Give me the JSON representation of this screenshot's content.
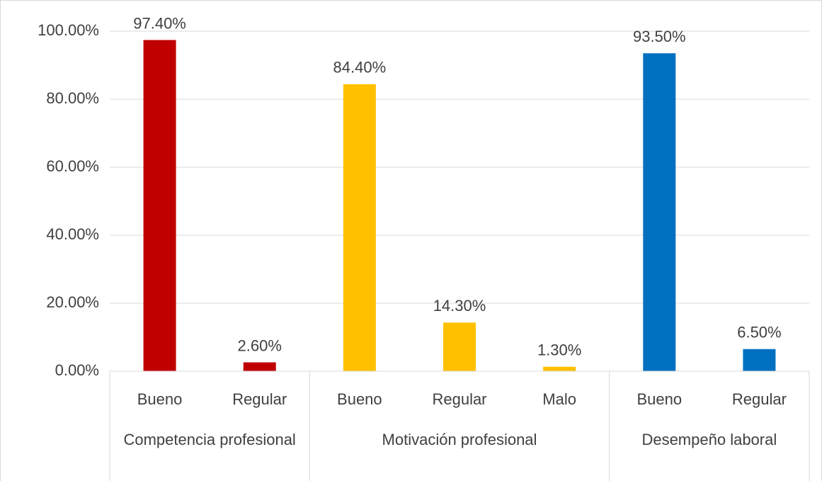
{
  "chart_data": {
    "type": "bar",
    "ylim": [
      0,
      100
    ],
    "yticks": [
      {
        "value": 0,
        "label": "0.00%"
      },
      {
        "value": 20,
        "label": "20.00%"
      },
      {
        "value": 40,
        "label": "40.00%"
      },
      {
        "value": 60,
        "label": "60.00%"
      },
      {
        "value": 80,
        "label": "80.00%"
      },
      {
        "value": 100,
        "label": "100.00%"
      }
    ],
    "grid": true,
    "groups": [
      {
        "name": "Competencia profesional",
        "color": "#c00000",
        "categories": [
          "Bueno",
          "Regular"
        ],
        "values": [
          97.4,
          2.6
        ],
        "value_labels": [
          "97.40%",
          "2.60%"
        ]
      },
      {
        "name": "Motivación profesional",
        "color": "#ffc000",
        "categories": [
          "Bueno",
          "Regular",
          "Malo"
        ],
        "values": [
          84.4,
          14.3,
          1.3
        ],
        "value_labels": [
          "84.40%",
          "14.30%",
          "1.30%"
        ]
      },
      {
        "name": "Desempeño laboral",
        "color": "#0070c0",
        "categories": [
          "Bueno",
          "Regular"
        ],
        "values": [
          93.5,
          6.5
        ],
        "value_labels": [
          "93.50%",
          "6.50%"
        ]
      }
    ]
  }
}
